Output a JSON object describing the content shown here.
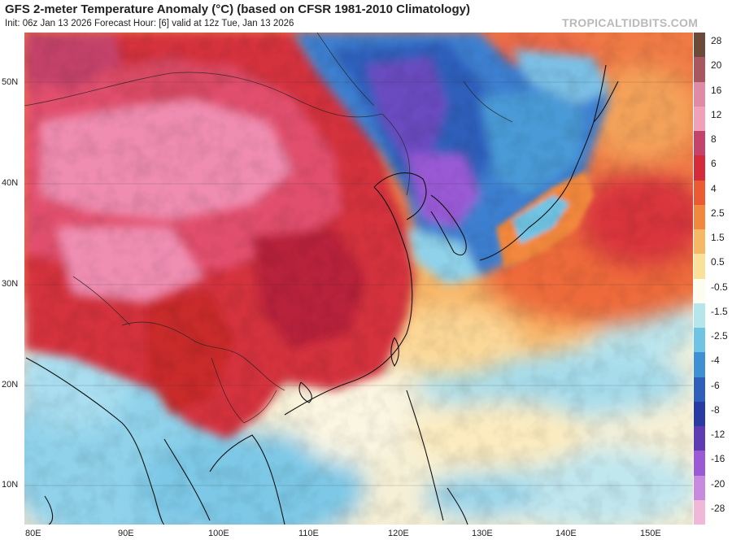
{
  "header": {
    "title": "GFS 2-meter Temperature Anomaly (°C) (based on CFSR 1981-2010 Climatology)",
    "subtitle": "Init: 06z Jan 13 2026   Forecast Hour: [6]   valid at 12z Tue, Jan 13 2026",
    "watermark": "TROPICALTIDBITS.COM"
  },
  "map": {
    "lat_labels": [
      "50N",
      "40N",
      "30N",
      "20N",
      "10N"
    ],
    "lon_labels": [
      "80E",
      "90E",
      "100E",
      "110E",
      "120E",
      "130E",
      "140E",
      "150E"
    ]
  },
  "colorbar": {
    "levels": [
      {
        "label": "28",
        "color": "#6b4a3a"
      },
      {
        "label": "20",
        "color": "#a8565f"
      },
      {
        "label": "16",
        "color": "#e08aa6"
      },
      {
        "label": "12",
        "color": "#f0a0b8"
      },
      {
        "label": "8",
        "color": "#c4436a"
      },
      {
        "label": "6",
        "color": "#d52a3a"
      },
      {
        "label": "4",
        "color": "#ec5a32"
      },
      {
        "label": "2.5",
        "color": "#f2883e"
      },
      {
        "label": "1.5",
        "color": "#f7b865"
      },
      {
        "label": "0.5",
        "color": "#fbe09a"
      },
      {
        "label": "-0.5",
        "color": "#fdfcf0"
      },
      {
        "label": "-1.5",
        "color": "#b4e6ec"
      },
      {
        "label": "-2.5",
        "color": "#6fc4e4"
      },
      {
        "label": "-4",
        "color": "#3e8fd4"
      },
      {
        "label": "-6",
        "color": "#2e5fbb"
      },
      {
        "label": "-8",
        "color": "#2a3aa3"
      },
      {
        "label": "-12",
        "color": "#5e3ab3"
      },
      {
        "label": "-16",
        "color": "#9a5ad6"
      },
      {
        "label": "-20",
        "color": "#c88adf"
      },
      {
        "label": "-28",
        "color": "#f0b8d8"
      }
    ]
  }
}
